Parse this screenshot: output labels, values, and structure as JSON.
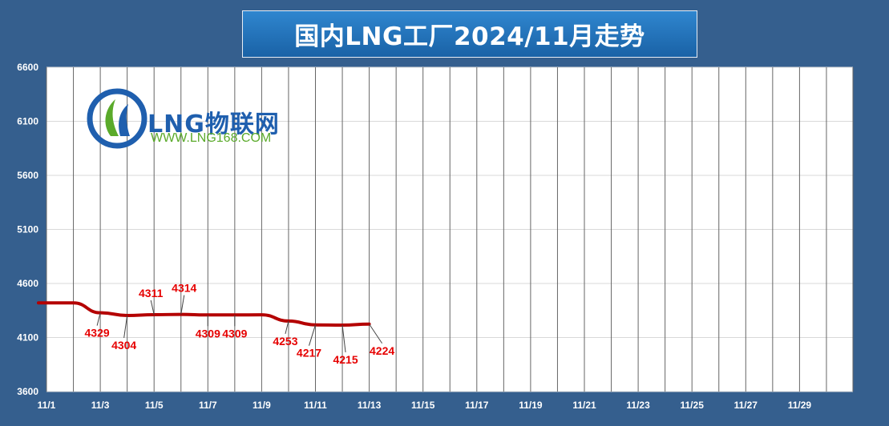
{
  "title": "国内LNG工厂2024/11月走势",
  "logo": {
    "brand": "LNG物联网",
    "url": "WWW.LNG168.COM"
  },
  "colors": {
    "background": "#355f8e",
    "plot_bg": "#ffffff",
    "line": "#b40000",
    "label": "#e60000"
  },
  "chart_data": {
    "type": "line",
    "title": "国内LNG工厂2024/11月走势",
    "xlabel": "",
    "ylabel": "",
    "ylim": [
      3600,
      6600
    ],
    "yticks": [
      3600,
      4100,
      4600,
      5100,
      5600,
      6100,
      6600
    ],
    "x_days": [
      1,
      2,
      3,
      4,
      5,
      6,
      7,
      8,
      9,
      10,
      11,
      12,
      13,
      14,
      15,
      16,
      17,
      18,
      19,
      20,
      21,
      22,
      23,
      24,
      25,
      26,
      27,
      28,
      29,
      30
    ],
    "xtick_labels": [
      "11/1",
      "11/3",
      "11/5",
      "11/7",
      "11/9",
      "11/11",
      "11/13",
      "11/15",
      "11/17",
      "11/19",
      "11/21",
      "11/23",
      "11/25",
      "11/27",
      "11/29"
    ],
    "grid": true,
    "series": [
      {
        "x": [
          "11/1",
          "11/2",
          "11/3",
          "11/4",
          "11/5",
          "11/6",
          "11/7",
          "11/8",
          "11/9",
          "11/10",
          "11/11",
          "11/12",
          "11/13"
        ],
        "values": [
          4420,
          4420,
          4329,
          4304,
          4311,
          4314,
          4309,
          4309,
          4310,
          4253,
          4217,
          4215,
          4224
        ],
        "data_labels": [
          {
            "day": 3,
            "text": "4329"
          },
          {
            "day": 4,
            "text": "4304"
          },
          {
            "day": 5,
            "text": "4311"
          },
          {
            "day": 6,
            "text": "4314"
          },
          {
            "day": 7,
            "text": "4309"
          },
          {
            "day": 8,
            "text": "4309"
          },
          {
            "day": 10,
            "text": "4253"
          },
          {
            "day": 11,
            "text": "4217"
          },
          {
            "day": 12,
            "text": "4215"
          },
          {
            "day": 13,
            "text": "4224"
          }
        ]
      }
    ]
  }
}
